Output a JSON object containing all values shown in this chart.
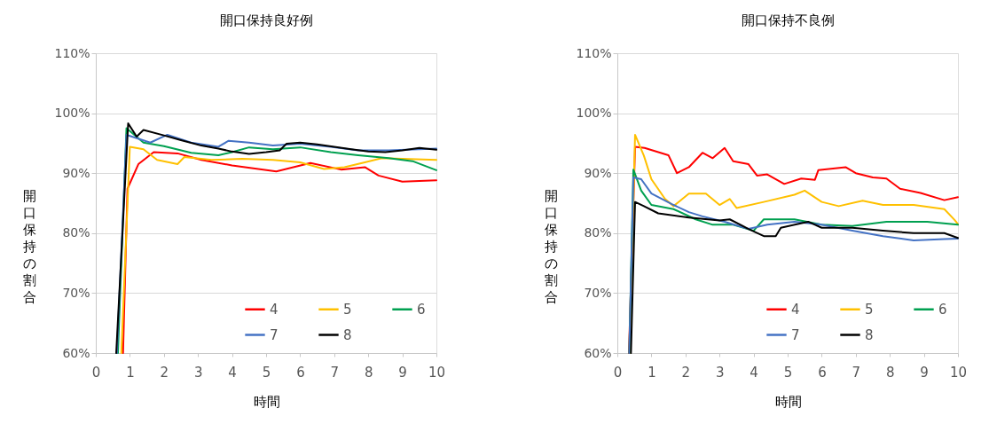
{
  "chart_data": [
    {
      "type": "line",
      "title": "開口保持良好例",
      "xlabel": "時間",
      "ylabel": "開口保持の割合",
      "xlim": [
        0,
        10
      ],
      "xticks": [
        0,
        1,
        2,
        3,
        4,
        5,
        6,
        7,
        8,
        9,
        10
      ],
      "ylim": [
        60,
        110
      ],
      "yticks": [
        {
          "value": 60,
          "label": "60%"
        },
        {
          "value": 70,
          "label": "70%"
        },
        {
          "value": 80,
          "label": "80%"
        },
        {
          "value": 90,
          "label": "90%"
        },
        {
          "value": 100,
          "label": "100%"
        },
        {
          "value": 110,
          "label": "110%"
        }
      ],
      "grid": "y",
      "legend": "bottom right",
      "line_style": "solid",
      "series": [
        {
          "name": "4",
          "color": "#ff0000",
          "x": [
            0.8,
            0.93,
            1.25,
            1.7,
            2.4,
            3.1,
            4.0,
            5.3,
            6.3,
            7.2,
            7.9,
            8.3,
            9.0,
            10.0
          ],
          "values": [
            60,
            87.4,
            91.5,
            93.5,
            93.3,
            92.2,
            91.3,
            90.3,
            91.7,
            90.6,
            91.0,
            89.6,
            88.6,
            88.8
          ]
        },
        {
          "name": "5",
          "color": "#ffc000",
          "x": [
            0.75,
            1.0,
            1.4,
            1.8,
            2.4,
            2.6,
            3.4,
            4.3,
            5.2,
            6.0,
            6.7,
            7.3,
            7.9,
            8.4,
            10.0
          ],
          "values": [
            60,
            94.4,
            94.0,
            92.2,
            91.5,
            92.7,
            92.2,
            92.4,
            92.2,
            91.8,
            90.7,
            91.0,
            91.8,
            92.5,
            92.2
          ]
        },
        {
          "name": "6",
          "color": "#00a050",
          "x": [
            0.65,
            0.9,
            1.4,
            2.0,
            2.8,
            3.6,
            4.0,
            4.5,
            5.2,
            6.0,
            6.9,
            7.7,
            8.6,
            9.3,
            10.0
          ],
          "values": [
            60,
            97.5,
            95.1,
            94.5,
            93.4,
            93.0,
            93.5,
            94.3,
            94.0,
            94.3,
            93.5,
            93.0,
            92.5,
            92.0,
            90.5
          ]
        },
        {
          "name": "7",
          "color": "#4472c4",
          "x": [
            0.62,
            0.9,
            1.6,
            2.1,
            2.8,
            3.6,
            3.9,
            4.5,
            5.2,
            6.0,
            6.9,
            7.7,
            8.6,
            10.0
          ],
          "values": [
            60,
            96.4,
            95.1,
            96.4,
            95.1,
            94.4,
            95.4,
            95.1,
            94.6,
            94.9,
            94.4,
            93.8,
            93.8,
            94.1
          ]
        },
        {
          "name": "8",
          "color": "#000000",
          "x": [
            0.6,
            0.95,
            1.2,
            1.4,
            2.0,
            2.5,
            3.1,
            3.6,
            4.0,
            4.5,
            5.0,
            5.4,
            5.6,
            6.0,
            6.5,
            7.0,
            7.5,
            8.0,
            8.5,
            9.0,
            9.5,
            10.0
          ],
          "values": [
            60,
            98.3,
            96.1,
            97.2,
            96.3,
            95.5,
            94.6,
            94.1,
            93.6,
            93.2,
            93.5,
            93.8,
            94.9,
            95.1,
            94.8,
            94.4,
            94.0,
            93.6,
            93.5,
            93.8,
            94.2,
            93.9
          ]
        }
      ]
    },
    {
      "type": "line",
      "title": "開口保持不良例",
      "xlabel": "時間",
      "ylabel": "開口保持の割合",
      "xlim": [
        0,
        10
      ],
      "xticks": [
        0,
        1,
        2,
        3,
        4,
        5,
        6,
        7,
        8,
        9,
        10
      ],
      "ylim": [
        60,
        110
      ],
      "yticks": [
        {
          "value": 60,
          "label": "60%"
        },
        {
          "value": 70,
          "label": "70%"
        },
        {
          "value": 80,
          "label": "80%"
        },
        {
          "value": 90,
          "label": "90%"
        },
        {
          "value": 100,
          "label": "100%"
        },
        {
          "value": 110,
          "label": "110%"
        }
      ],
      "grid": "y",
      "legend": "bottom right",
      "line_style": "solid",
      "series": [
        {
          "name": "4",
          "color": "#ff0000",
          "x": [
            0.34,
            0.52,
            0.8,
            1.5,
            1.75,
            2.1,
            2.5,
            2.8,
            3.15,
            3.4,
            3.85,
            4.1,
            4.4,
            4.9,
            5.4,
            5.8,
            5.9,
            6.7,
            7.0,
            7.5,
            7.9,
            8.3,
            8.9,
            9.6,
            10.0
          ],
          "values": [
            60,
            94.4,
            94.2,
            93.0,
            90.0,
            91.0,
            93.4,
            92.5,
            94.2,
            92.0,
            91.5,
            89.6,
            89.8,
            88.2,
            89.1,
            88.9,
            90.5,
            91.0,
            90.0,
            89.3,
            89.1,
            87.4,
            86.7,
            85.5,
            86.0
          ]
        },
        {
          "name": "5",
          "color": "#ffc000",
          "x": [
            0.36,
            0.52,
            0.78,
            1.0,
            1.4,
            1.65,
            2.1,
            2.6,
            3.0,
            3.3,
            3.5,
            4.3,
            5.2,
            5.5,
            6.0,
            6.5,
            7.2,
            7.8,
            8.7,
            9.6,
            9.9,
            10.0
          ],
          "values": [
            60,
            96.4,
            92.9,
            89.0,
            85.7,
            84.5,
            86.6,
            86.6,
            84.7,
            85.7,
            84.2,
            85.2,
            86.4,
            87.1,
            85.2,
            84.5,
            85.4,
            84.7,
            84.7,
            84.0,
            82.2,
            81.5
          ]
        },
        {
          "name": "6",
          "color": "#00a050",
          "x": [
            0.35,
            0.47,
            0.7,
            1.0,
            1.65,
            2.3,
            2.8,
            3.4,
            4.0,
            4.3,
            5.2,
            6.0,
            6.9,
            7.9,
            9.1,
            10.0
          ],
          "values": [
            60,
            90.6,
            87.1,
            84.7,
            84.0,
            82.3,
            81.4,
            81.4,
            80.4,
            82.3,
            82.3,
            81.4,
            81.2,
            81.9,
            81.9,
            81.4
          ]
        },
        {
          "name": "7",
          "color": "#4472c4",
          "x": [
            0.35,
            0.47,
            0.7,
            1.0,
            1.65,
            2.1,
            2.5,
            3.15,
            3.85,
            4.4,
            5.2,
            6.0,
            6.9,
            7.8,
            8.7,
            9.6,
            10.0
          ],
          "values": [
            60,
            89.3,
            89.0,
            86.6,
            84.7,
            83.5,
            82.8,
            81.9,
            80.7,
            81.4,
            81.9,
            81.4,
            80.4,
            79.5,
            78.8,
            79.0,
            79.1
          ]
        },
        {
          "name": "8",
          "color": "#000000",
          "x": [
            0.4,
            0.52,
            0.78,
            1.2,
            2.1,
            3.0,
            3.3,
            3.85,
            4.3,
            4.65,
            4.8,
            5.6,
            6.0,
            6.9,
            7.8,
            8.7,
            9.6,
            10.0
          ],
          "values": [
            60,
            85.2,
            84.5,
            83.3,
            82.6,
            82.1,
            82.3,
            80.7,
            79.5,
            79.5,
            80.9,
            81.9,
            80.9,
            80.9,
            80.4,
            80.0,
            80.0,
            79.2
          ]
        }
      ]
    }
  ]
}
